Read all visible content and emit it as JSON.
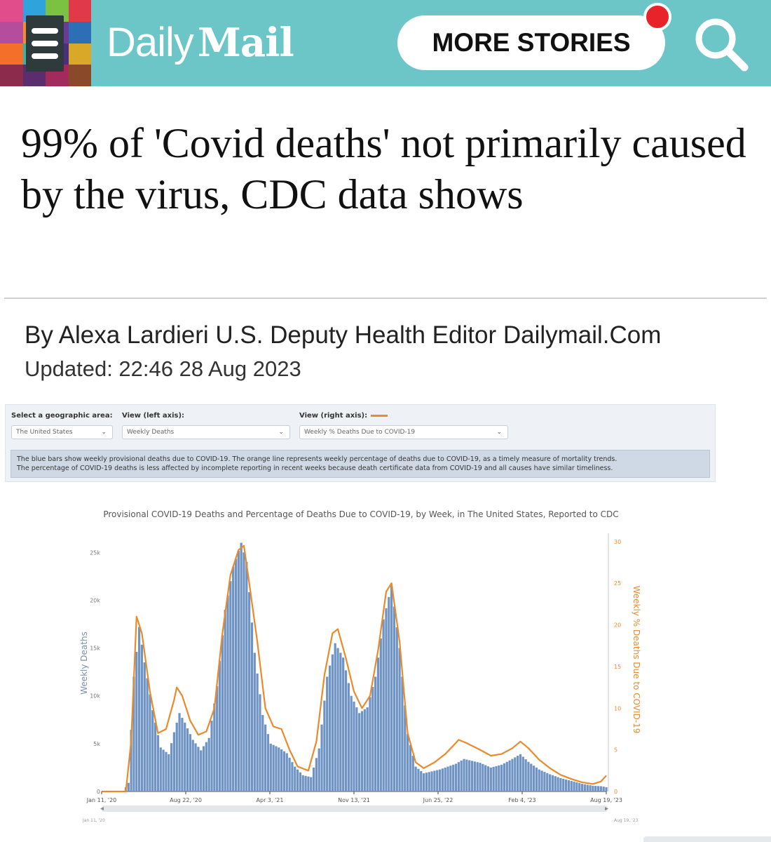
{
  "header": {
    "logo_part1": "Daily",
    "logo_part2": "Mail",
    "more_stories": "MORE STORIES",
    "brand_color": "#6cc6c8",
    "notification_color": "#e8232a",
    "menu_icon": "hamburger-menu-icon",
    "search_icon": "search-icon"
  },
  "article": {
    "headline": "99% of 'Covid deaths' not primarily caused by the virus, CDC data shows",
    "byline": "By Alexa Lardieri U.S. Deputy Health Editor Dailymail.Com",
    "updated": "Updated: 22:46 28 Aug 2023"
  },
  "figure": {
    "controls": [
      {
        "label": "Select a geographic area:",
        "value": "The United States"
      },
      {
        "label": "View (left axis):",
        "value": "Weekly Deaths"
      },
      {
        "label": "View (right axis):",
        "value": "Weekly % Deaths Due to COVID-19"
      }
    ],
    "note_line1": "The blue bars show weekly provisional deaths due to COVID-19. The orange line represents weekly percentage of deaths due to COVID-19, as a timely measure of mortality trends.",
    "note_line2": "The percentage of COVID-19 deaths is less affected by incomplete reporting in recent weeks because death certificate data from COVID-19 and all causes have similar timeliness.",
    "range_start": "Jan 11, '20",
    "range_end": "Aug 19, '23"
  },
  "chart_data": {
    "type": "bar",
    "title": "Provisional COVID-19 Deaths and Percentage of Deaths Due to COVID-19, by Week, in The United States, Reported to CDC",
    "ylabel": "Weekly Deaths",
    "y2label": "Weekly % Deaths Due to COVID-19",
    "ylim": [
      0,
      27000
    ],
    "y2lim": [
      0,
      31
    ],
    "yticks": [
      0,
      5000,
      10000,
      15000,
      20000,
      25000
    ],
    "ytick_labels": [
      "0",
      "5k",
      "10k",
      "15k",
      "20k",
      "25k"
    ],
    "y2ticks": [
      0,
      5,
      10,
      15,
      20,
      25,
      30
    ],
    "xtick_labels": [
      "Jan 11, '20",
      "Aug 22, '20",
      "Apr 3, '21",
      "Nov 13, '21",
      "Jun 25, '22",
      "Feb 4, '23",
      "Aug 19, '23"
    ],
    "bar_color": "#6f94c4",
    "line_color": "#e98b2c",
    "series": [
      {
        "name": "Weekly Deaths",
        "type": "bar",
        "points": [
          [
            "2020-01-11",
            0
          ],
          [
            "2020-03-07",
            0
          ],
          [
            "2020-03-21",
            900
          ],
          [
            "2020-04-04",
            12000
          ],
          [
            "2020-04-18",
            17200
          ],
          [
            "2020-05-02",
            13500
          ],
          [
            "2020-05-23",
            8500
          ],
          [
            "2020-06-13",
            4600
          ],
          [
            "2020-07-04",
            3900
          ],
          [
            "2020-07-18",
            6200
          ],
          [
            "2020-08-01",
            8200
          ],
          [
            "2020-08-15",
            7200
          ],
          [
            "2020-09-05",
            5400
          ],
          [
            "2020-09-26",
            4300
          ],
          [
            "2020-10-17",
            5600
          ],
          [
            "2020-11-07",
            11000
          ],
          [
            "2020-11-28",
            19000
          ],
          [
            "2020-12-19",
            23500
          ],
          [
            "2021-01-09",
            26000
          ],
          [
            "2021-01-23",
            24000
          ],
          [
            "2021-02-13",
            14500
          ],
          [
            "2021-03-06",
            8000
          ],
          [
            "2021-03-27",
            5000
          ],
          [
            "2021-04-17",
            4600
          ],
          [
            "2021-05-08",
            4000
          ],
          [
            "2021-05-29",
            2600
          ],
          [
            "2021-06-19",
            1700
          ],
          [
            "2021-07-10",
            1500
          ],
          [
            "2021-07-31",
            4500
          ],
          [
            "2021-08-21",
            12000
          ],
          [
            "2021-09-11",
            15500
          ],
          [
            "2021-10-02",
            14000
          ],
          [
            "2021-10-23",
            10000
          ],
          [
            "2021-11-13",
            8200
          ],
          [
            "2021-12-04",
            8800
          ],
          [
            "2021-12-25",
            12000
          ],
          [
            "2022-01-15",
            18000
          ],
          [
            "2022-02-05",
            21500
          ],
          [
            "2022-02-26",
            15000
          ],
          [
            "2022-03-19",
            6000
          ],
          [
            "2022-04-09",
            2600
          ],
          [
            "2022-04-30",
            1900
          ],
          [
            "2022-06-11",
            2300
          ],
          [
            "2022-07-23",
            2900
          ],
          [
            "2022-08-13",
            3400
          ],
          [
            "2022-09-24",
            3000
          ],
          [
            "2022-10-22",
            2500
          ],
          [
            "2022-11-19",
            2800
          ],
          [
            "2022-12-17",
            3400
          ],
          [
            "2023-01-07",
            3900
          ],
          [
            "2023-01-28",
            3100
          ],
          [
            "2023-02-25",
            2300
          ],
          [
            "2023-03-25",
            1800
          ],
          [
            "2023-04-22",
            1400
          ],
          [
            "2023-05-20",
            1100
          ],
          [
            "2023-06-17",
            800
          ],
          [
            "2023-07-15",
            600
          ],
          [
            "2023-08-05",
            550
          ],
          [
            "2023-08-19",
            450
          ]
        ]
      },
      {
        "name": "Weekly % Deaths Due to COVID-19",
        "type": "line",
        "points": [
          [
            "2020-01-11",
            0
          ],
          [
            "2020-03-14",
            0
          ],
          [
            "2020-03-28",
            6
          ],
          [
            "2020-04-11",
            21
          ],
          [
            "2020-04-25",
            19
          ],
          [
            "2020-05-16",
            12
          ],
          [
            "2020-06-06",
            7
          ],
          [
            "2020-06-27",
            7.5
          ],
          [
            "2020-07-18",
            11
          ],
          [
            "2020-07-25",
            12.5
          ],
          [
            "2020-08-08",
            11.5
          ],
          [
            "2020-08-29",
            8.5
          ],
          [
            "2020-09-19",
            6.8
          ],
          [
            "2020-10-10",
            7.2
          ],
          [
            "2020-10-31",
            10
          ],
          [
            "2020-11-21",
            19
          ],
          [
            "2020-12-12",
            26
          ],
          [
            "2021-01-02",
            29
          ],
          [
            "2021-01-16",
            29.5
          ],
          [
            "2021-01-30",
            25
          ],
          [
            "2021-02-20",
            18
          ],
          [
            "2021-03-13",
            10
          ],
          [
            "2021-04-03",
            7.8
          ],
          [
            "2021-04-24",
            7.5
          ],
          [
            "2021-05-15",
            5
          ],
          [
            "2021-06-05",
            3
          ],
          [
            "2021-07-03",
            2.5
          ],
          [
            "2021-07-24",
            6
          ],
          [
            "2021-08-14",
            14
          ],
          [
            "2021-09-04",
            19
          ],
          [
            "2021-09-18",
            19.5
          ],
          [
            "2021-10-09",
            16
          ],
          [
            "2021-10-30",
            12
          ],
          [
            "2021-11-20",
            10
          ],
          [
            "2021-12-11",
            11.5
          ],
          [
            "2022-01-01",
            17
          ],
          [
            "2022-01-22",
            24
          ],
          [
            "2022-02-05",
            25
          ],
          [
            "2022-02-26",
            18
          ],
          [
            "2022-03-19",
            7
          ],
          [
            "2022-04-09",
            3.5
          ],
          [
            "2022-04-30",
            2.8
          ],
          [
            "2022-05-28",
            3.5
          ],
          [
            "2022-06-25",
            4.5
          ],
          [
            "2022-07-16",
            5.5
          ],
          [
            "2022-07-30",
            6.2
          ],
          [
            "2022-08-20",
            5.8
          ],
          [
            "2022-09-24",
            5
          ],
          [
            "2022-10-22",
            4.3
          ],
          [
            "2022-11-19",
            4.5
          ],
          [
            "2022-12-17",
            5.2
          ],
          [
            "2023-01-07",
            6
          ],
          [
            "2023-01-28",
            5.2
          ],
          [
            "2023-02-25",
            3.8
          ],
          [
            "2023-03-25",
            2.8
          ],
          [
            "2023-04-22",
            2
          ],
          [
            "2023-05-20",
            1.5
          ],
          [
            "2023-06-17",
            1.1
          ],
          [
            "2023-07-15",
            0.9
          ],
          [
            "2023-08-05",
            1.2
          ],
          [
            "2023-08-19",
            1.9
          ]
        ]
      }
    ]
  }
}
